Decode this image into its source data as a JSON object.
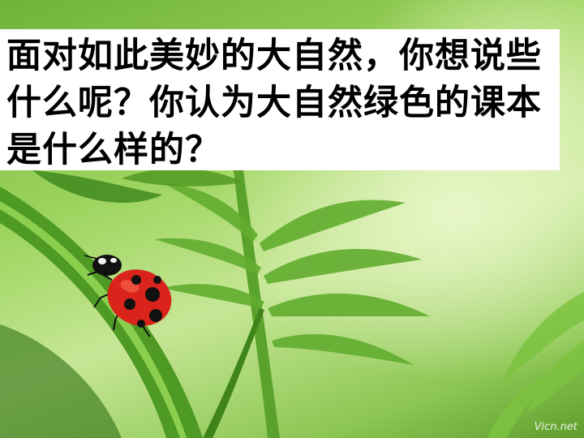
{
  "slide": {
    "title": "面对如此美妙的大自然，你想说些什么呢？你认为大自然绿色的课本是什么样的？",
    "watermark": "Vicn.net",
    "background_colors": [
      "#6fb33a",
      "#9bd35c",
      "#c6e796",
      "#5f9e2c"
    ],
    "title_box_color": "#ffffff",
    "ladybug_color": "#d9231b"
  }
}
